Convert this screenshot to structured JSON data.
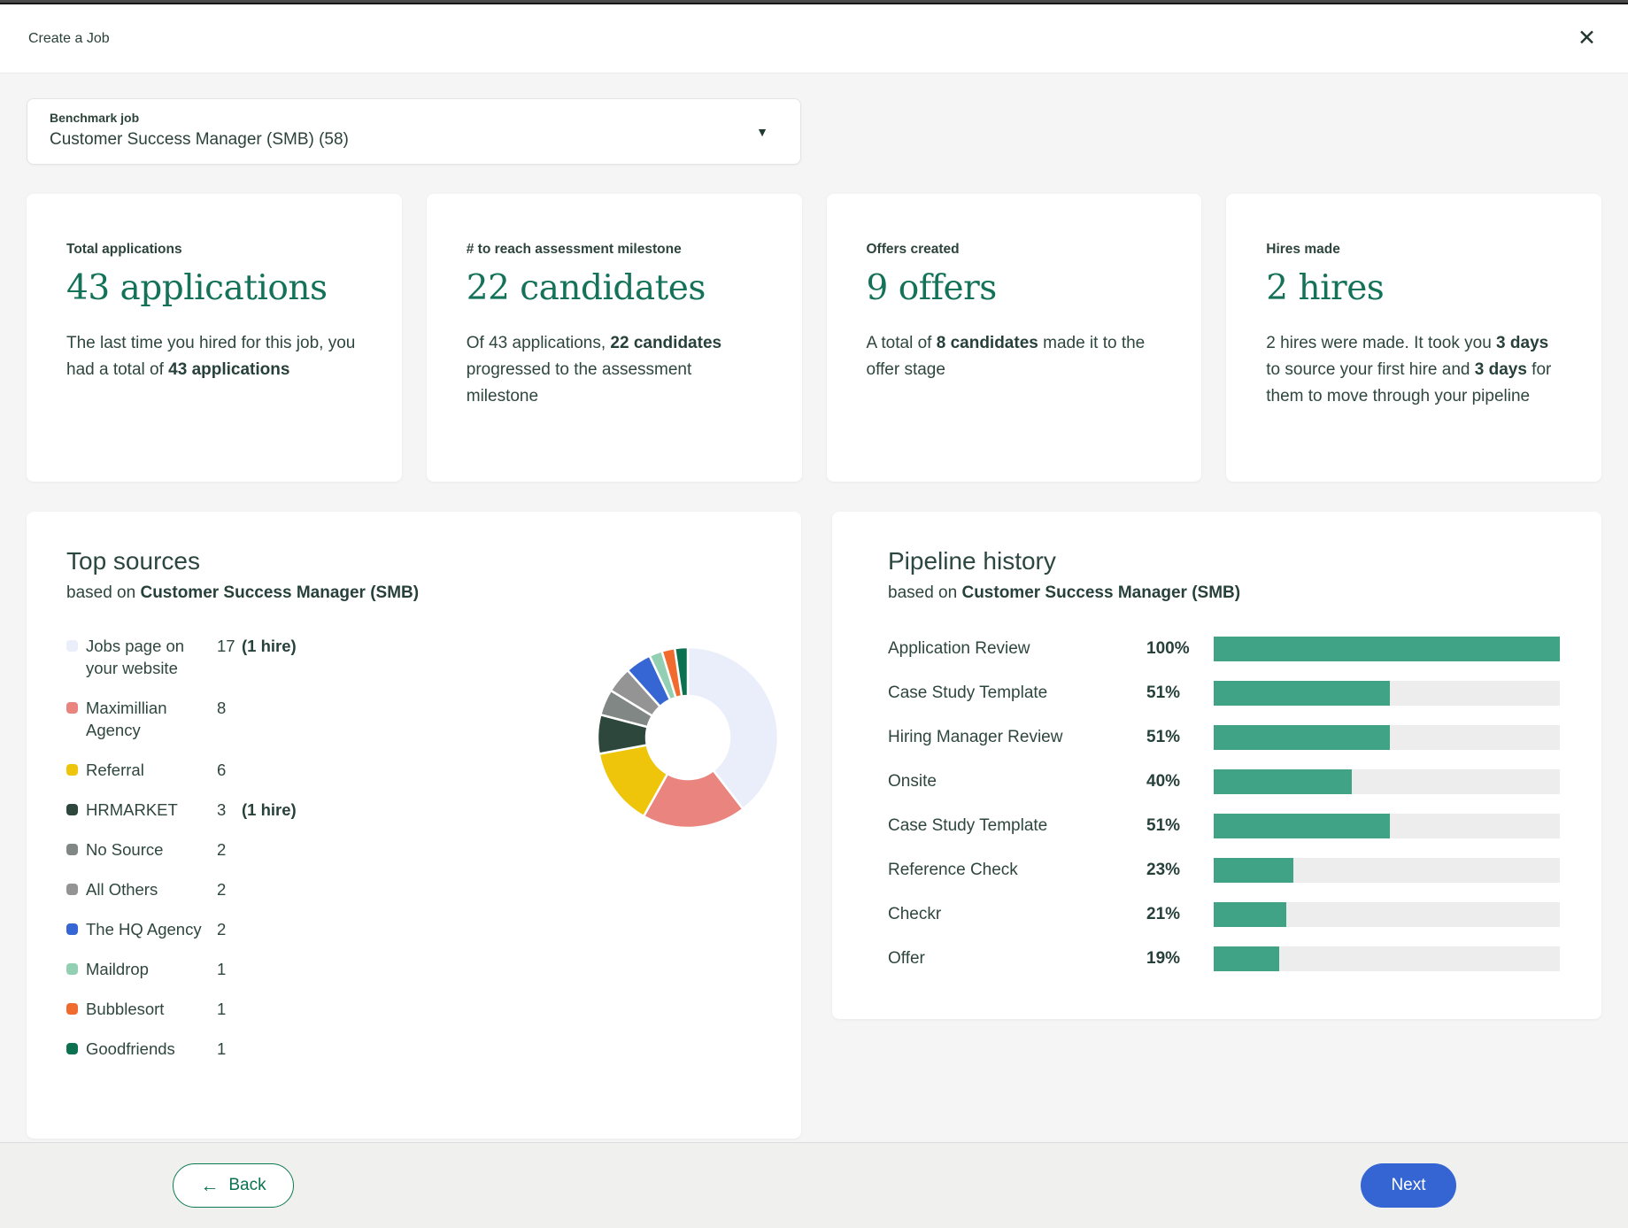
{
  "header": {
    "title": "Create a Job",
    "close_icon": "✕"
  },
  "benchmark": {
    "label": "Benchmark job",
    "value": "Customer Success Manager (SMB) (58)",
    "dropdown_icon": "▼"
  },
  "stat_cards": [
    {
      "label": "Total applications",
      "value": "43 applications",
      "desc": [
        {
          "t": "The last time you hired for this job, you had a total of "
        },
        {
          "t": "43 applications",
          "b": true
        }
      ]
    },
    {
      "label": "# to reach assessment milestone",
      "value": "22 candidates",
      "desc": [
        {
          "t": "Of 43 applications, "
        },
        {
          "t": "22 candidates",
          "b": true
        },
        {
          "t": " progressed to the assessment milestone"
        }
      ]
    },
    {
      "label": "Offers created",
      "value": "9 offers",
      "desc": [
        {
          "t": "A total of "
        },
        {
          "t": "8 candidates",
          "b": true
        },
        {
          "t": " made it to the offer stage"
        }
      ]
    },
    {
      "label": "Hires made",
      "value": "2 hires",
      "desc": [
        {
          "t": "2 hires were made. It took you "
        },
        {
          "t": "3 days",
          "b": true
        },
        {
          "t": " to source your first hire and "
        },
        {
          "t": "3 days",
          "b": true
        },
        {
          "t": " for them to move through your pipeline"
        }
      ]
    }
  ],
  "chart_data": [
    {
      "type": "pie",
      "donut": true,
      "title": "Top sources",
      "subtitle": [
        {
          "t": "based on "
        },
        {
          "t": "Customer Success Manager (SMB)",
          "b": true
        }
      ],
      "total": 43,
      "start_angle": "top",
      "direction": "clockwise",
      "legend_position": "left",
      "series": [
        {
          "label": "Jobs page on your website",
          "value": 17,
          "hires": "(1 hire)",
          "color": "#e9eefa"
        },
        {
          "label": "Maximillian Agency",
          "value": 8,
          "color": "#e9847e"
        },
        {
          "label": "Referral",
          "value": 6,
          "color": "#eec50b"
        },
        {
          "label": "HRMARKET",
          "value": 3,
          "hires": "(1 hire)",
          "color": "#2d473c"
        },
        {
          "label": "No Source",
          "value": 2,
          "color": "#808784"
        },
        {
          "label": "All Others",
          "value": 2,
          "color": "#949494"
        },
        {
          "label": "The HQ Agency",
          "value": 2,
          "color": "#3566d3"
        },
        {
          "label": "Maildrop",
          "value": 1,
          "color": "#92cfb3"
        },
        {
          "label": "Bubblesort",
          "value": 1,
          "color": "#f26b2e"
        },
        {
          "label": "Goodfriends",
          "value": 1,
          "color": "#0c7150"
        }
      ]
    },
    {
      "type": "bar",
      "orientation": "horizontal",
      "title": "Pipeline history",
      "subtitle": [
        {
          "t": "based on "
        },
        {
          "t": "Customer Success Manager (SMB)",
          "b": true
        }
      ],
      "categories": [
        "Application Review",
        "Case Study Template",
        "Hiring Manager Review",
        "Onsite",
        "Case Study Template",
        "Reference Check",
        "Checkr",
        "Offer"
      ],
      "values": [
        100,
        51,
        51,
        40,
        51,
        23,
        21,
        19
      ],
      "value_suffix": "%",
      "xlim": [
        0,
        100
      ],
      "bar_color": "#41a385",
      "track_color": "#ecedec"
    }
  ],
  "footer": {
    "back_icon": "←",
    "back_label": "Back",
    "next_label": "Next"
  }
}
